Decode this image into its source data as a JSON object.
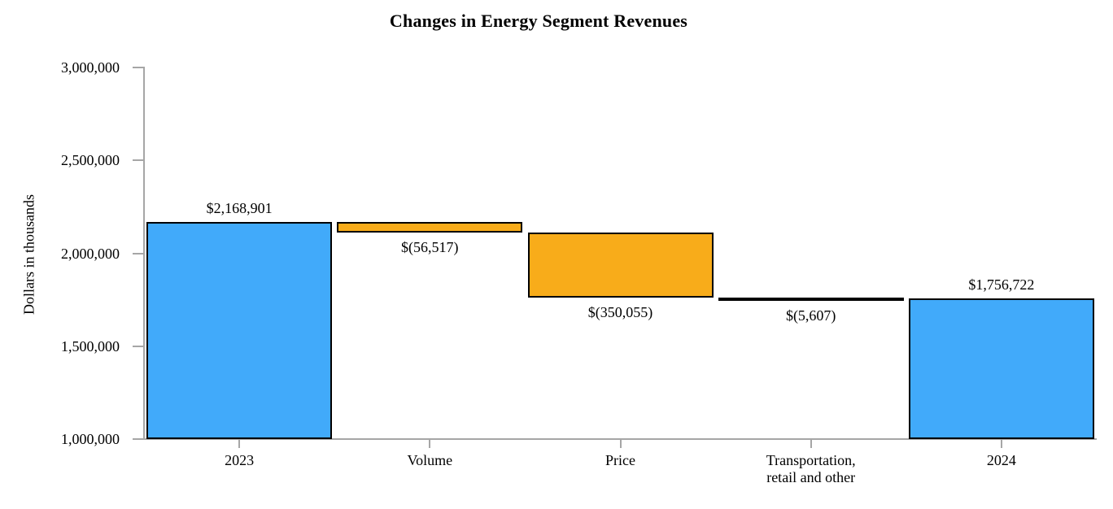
{
  "chart_data": {
    "type": "bar",
    "subtype": "waterfall",
    "title": "Changes in Energy Segment Revenues",
    "xlabel": "",
    "ylabel": "Dollars in thousands",
    "ylim": [
      1000000,
      3000000
    ],
    "ytick_interval": 500000,
    "ytick_labels": [
      "3,000,000",
      "2,500,000",
      "2,000,000",
      "1,500,000",
      "1,000,000"
    ],
    "grid": "off",
    "legend": "none",
    "categories": [
      "2023",
      "Volume",
      "Price",
      "Transportation,\nretail and other",
      "2024"
    ],
    "steps": [
      {
        "label": "2023",
        "kind": "total",
        "value": 2168901,
        "display": "$2,168,901",
        "value_label_position": "above"
      },
      {
        "label": "Volume",
        "kind": "decrease",
        "value": -56517,
        "display": "$(56,517)",
        "value_label_position": "below"
      },
      {
        "label": "Price",
        "kind": "decrease",
        "value": -350055,
        "display": "$(350,055)",
        "value_label_position": "below"
      },
      {
        "label": "Transportation,\nretail and other",
        "kind": "decrease",
        "value": -5607,
        "display": "$(5,607)",
        "value_label_position": "below"
      },
      {
        "label": "2024",
        "kind": "total",
        "value": 1756722,
        "display": "$1,756,722",
        "value_label_position": "above"
      }
    ],
    "colors": {
      "total_bar": "#41aafa",
      "decrease_bar": "#f8ac1a",
      "bar_border": "#000000",
      "axis": "#a6a6a6",
      "text": "#000000"
    }
  }
}
